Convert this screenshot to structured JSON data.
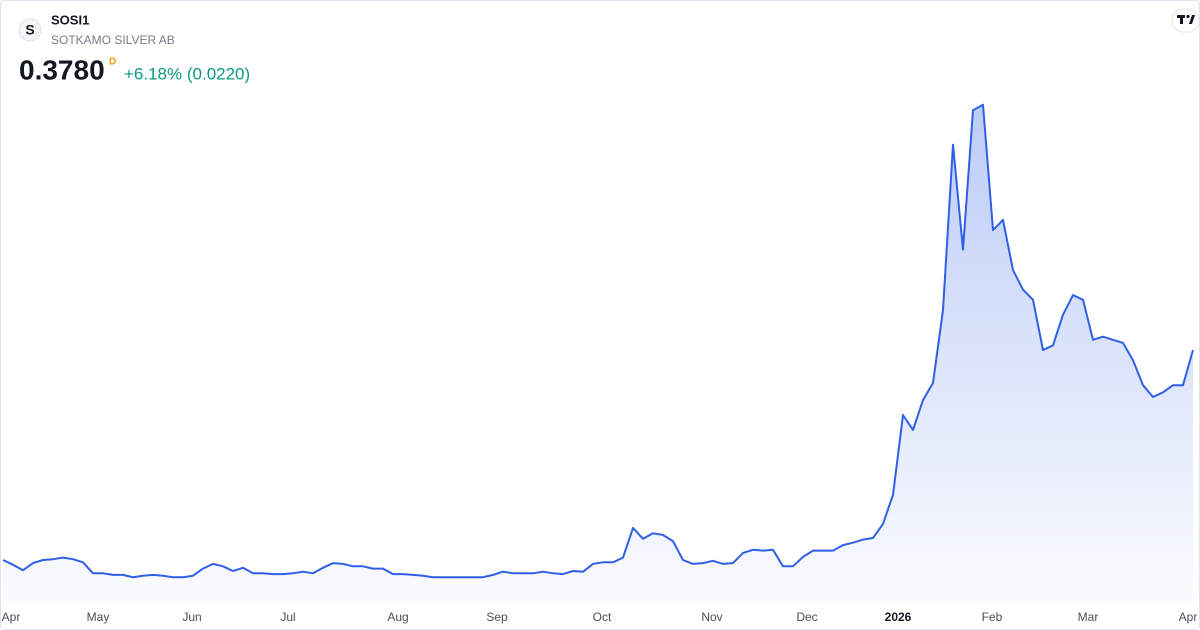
{
  "header": {
    "logo": "S",
    "symbol": "SOSI1",
    "name": "SOTKAMO SILVER AB",
    "price": "0.3780",
    "interval": "D",
    "change": "+6.18% (0.0220)"
  },
  "chart_data": {
    "type": "area",
    "series": [
      {
        "color": "#2f5fe6",
        "values": [
          0.11,
          0.104,
          0.097,
          0.106,
          0.11,
          0.111,
          0.113,
          0.111,
          0.107,
          0.093,
          0.093,
          0.091,
          0.091,
          0.088,
          0.09,
          0.091,
          0.09,
          0.088,
          0.088,
          0.09,
          0.099,
          0.105,
          0.102,
          0.096,
          0.1,
          0.093,
          0.093,
          0.092,
          0.092,
          0.093,
          0.095,
          0.093,
          0.1,
          0.106,
          0.105,
          0.102,
          0.102,
          0.099,
          0.099,
          0.092,
          0.092,
          0.091,
          0.09,
          0.088,
          0.088,
          0.088,
          0.088,
          0.088,
          0.088,
          0.091,
          0.095,
          0.093,
          0.093,
          0.093,
          0.095,
          0.093,
          0.092,
          0.096,
          0.095,
          0.105,
          0.107,
          0.107,
          0.113,
          0.151,
          0.137,
          0.144,
          0.142,
          0.134,
          0.11,
          0.105,
          0.106,
          0.109,
          0.105,
          0.106,
          0.119,
          0.123,
          0.122,
          0.123,
          0.102,
          0.102,
          0.114,
          0.122,
          0.122,
          0.122,
          0.129,
          0.132,
          0.136,
          0.138,
          0.156,
          0.193,
          0.295,
          0.276,
          0.314,
          0.336,
          0.429,
          0.64,
          0.506,
          0.684,
          0.691,
          0.531,
          0.544,
          0.48,
          0.455,
          0.442,
          0.378,
          0.384,
          0.423,
          0.448,
          0.442,
          0.391,
          0.395,
          0.391,
          0.387,
          0.365,
          0.333,
          0.318,
          0.324,
          0.333,
          0.333,
          0.378
        ]
      }
    ],
    "xlim": [
      0,
      119
    ],
    "ylim": [
      0.05,
      0.72
    ],
    "xticks": [
      {
        "value": 0.8,
        "label": "Apr"
      },
      {
        "value": 9.5,
        "label": "May"
      },
      {
        "value": 18.9,
        "label": "Jun"
      },
      {
        "value": 28.5,
        "label": "Jul"
      },
      {
        "value": 39.5,
        "label": "Aug"
      },
      {
        "value": 49.4,
        "label": "Sep"
      },
      {
        "value": 59.9,
        "label": "Oct"
      },
      {
        "value": 70.9,
        "label": "Nov"
      },
      {
        "value": 80.4,
        "label": "Dec"
      },
      {
        "value": 89.5,
        "label": "2026",
        "bold": true
      },
      {
        "value": 98.9,
        "label": "Feb"
      },
      {
        "value": 108.5,
        "label": "Mar"
      },
      {
        "value": 118.5,
        "label": "Apr"
      }
    ],
    "grid": false
  }
}
